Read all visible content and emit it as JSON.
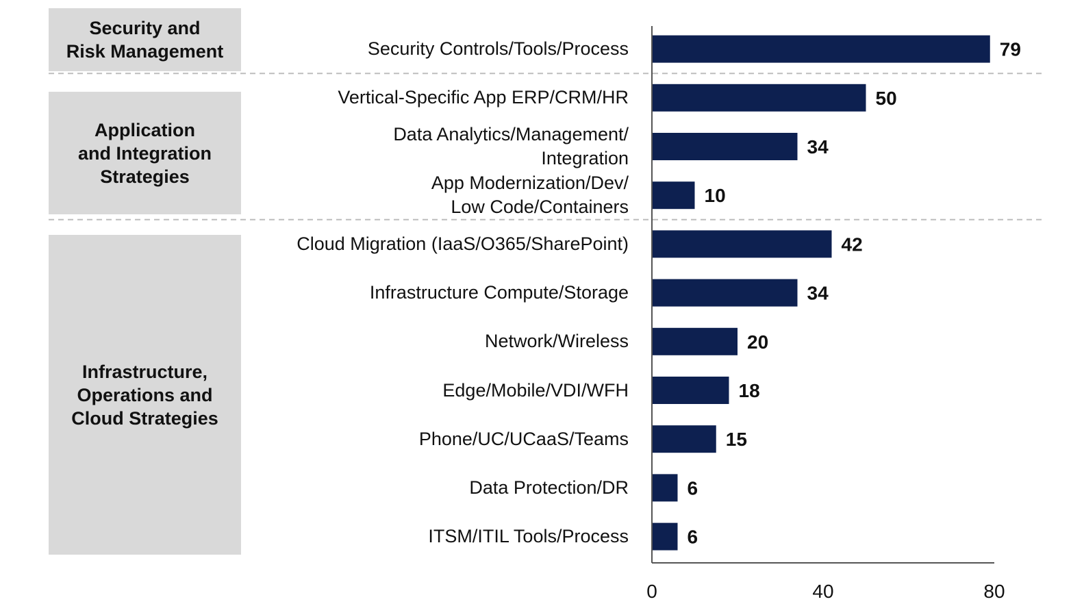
{
  "chart_data": {
    "type": "bar",
    "orientation": "horizontal",
    "groups": [
      {
        "name": "Security and\nRisk Management",
        "first_index": 0,
        "count": 1
      },
      {
        "name": "Application\nand Integration\nStrategies",
        "first_index": 1,
        "count": 3
      },
      {
        "name": "Infrastructure,\nOperations and\nCloud Strategies",
        "first_index": 4,
        "count": 7
      }
    ],
    "categories": [
      "Security Controls/Tools/Process",
      "Vertical-Specific App ERP/CRM/HR",
      "Data Analytics/Management/\nIntegration",
      "App Modernization/Dev/\nLow Code/Containers",
      "Cloud Migration (IaaS/O365/SharePoint)",
      "Infrastructure Compute/Storage",
      "Network/Wireless",
      "Edge/Mobile/VDI/WFH",
      "Phone/UC/UCaaS/Teams",
      "Data Protection/DR",
      "ITSM/ITIL Tools/Process"
    ],
    "values": [
      79,
      50,
      34,
      10,
      42,
      34,
      20,
      18,
      15,
      6,
      6
    ],
    "xlim": [
      0,
      80
    ],
    "xticks": [
      "0",
      "40",
      "80"
    ],
    "bar_color": "#0d2050",
    "group_box_color": "#d9d9d9",
    "separator_color": "#bdbdbd",
    "grid": false
  }
}
